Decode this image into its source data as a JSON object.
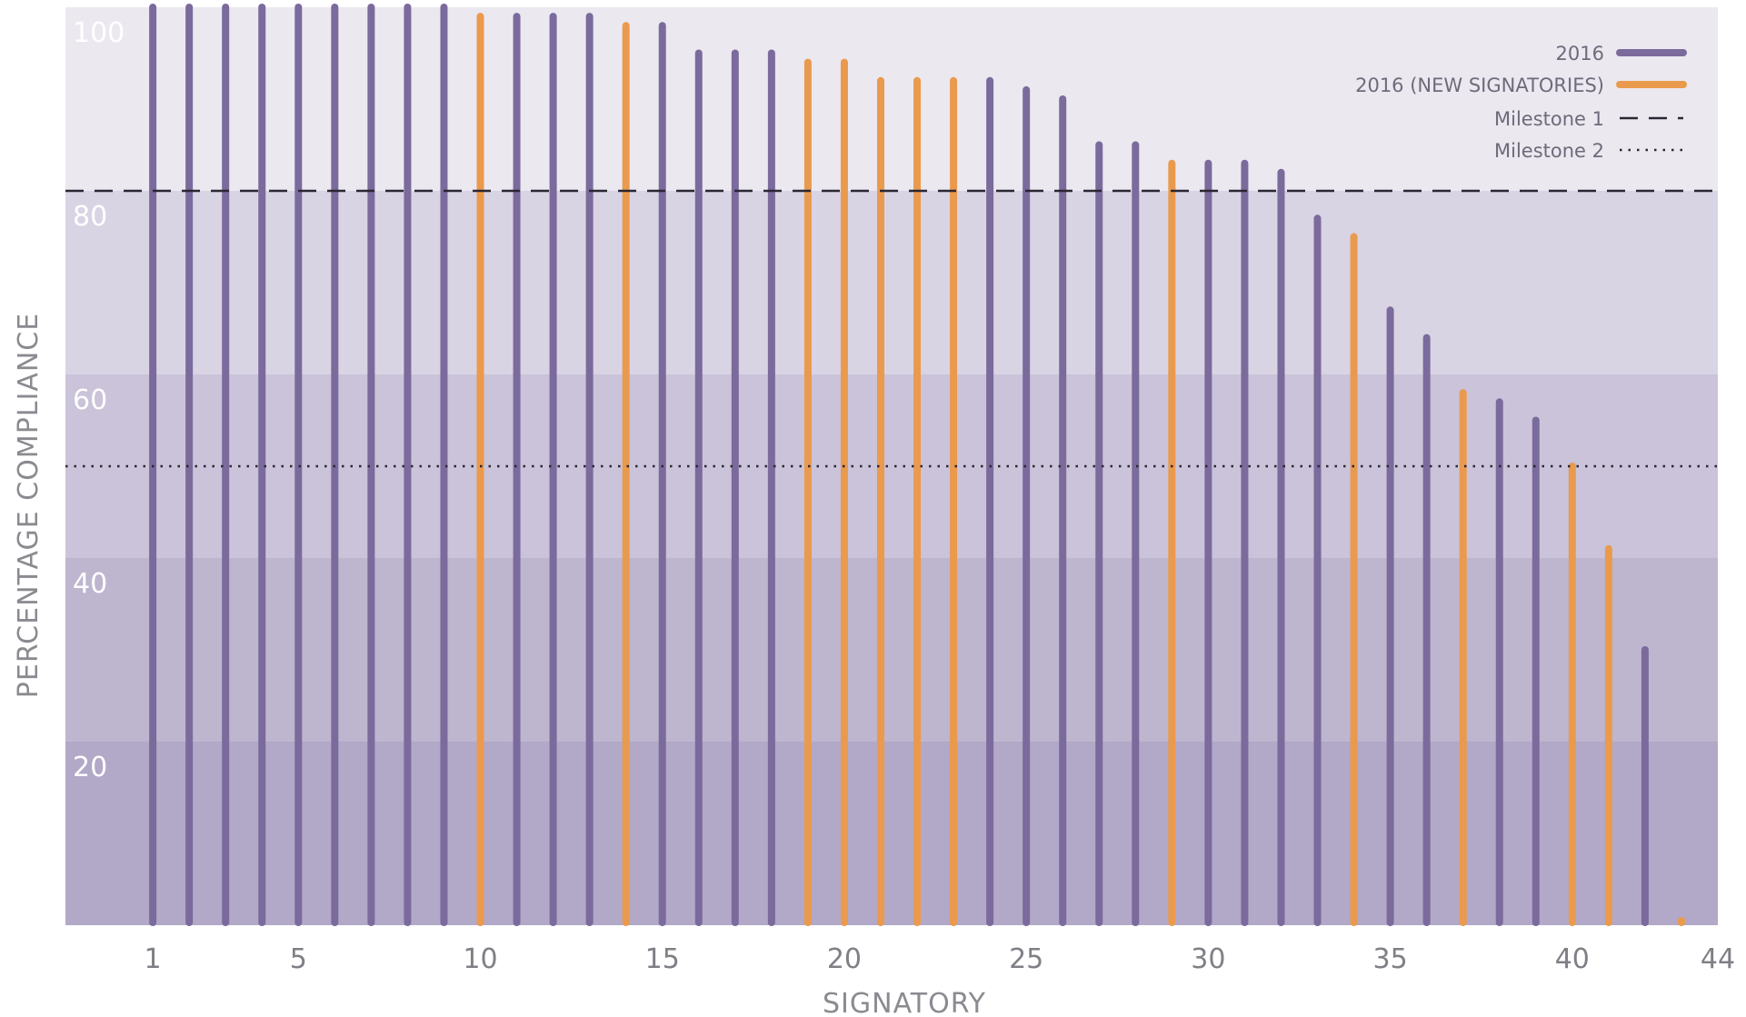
{
  "chart_data": {
    "type": "bar",
    "xlabel": "SIGNATORY",
    "ylabel": "PERCENTAGE COMPLIANCE",
    "xlim": [
      -1.4,
      44
    ],
    "ylim": [
      0,
      100
    ],
    "x_ticks": [
      1,
      5,
      10,
      15,
      20,
      25,
      30,
      35,
      40,
      44
    ],
    "y_ticks": [
      20,
      40,
      60,
      80,
      100
    ],
    "grid": false,
    "legend_position": "top-right",
    "colors": {
      "series_2016": "#7b6a9c",
      "series_new": "#ea9a4d",
      "milestone": "#2a2632",
      "bands": [
        "#b2a8c7",
        "#beb5cf",
        "#cac3d9",
        "#d9d4e4",
        "#ebe8f0"
      ]
    },
    "series": [
      {
        "name": "2016",
        "x": [
          1,
          2,
          3,
          4,
          5,
          6,
          7,
          8,
          9,
          11,
          12,
          13,
          15,
          16,
          17,
          18,
          24,
          25,
          26,
          27,
          28,
          30,
          31,
          32,
          33,
          35,
          36,
          38,
          39,
          42
        ],
        "values": [
          100,
          100,
          100,
          100,
          100,
          100,
          100,
          100,
          100,
          99,
          99,
          99,
          98,
          95,
          95,
          95,
          92,
          91,
          90,
          85,
          85,
          83,
          83,
          82,
          77,
          67,
          64,
          57,
          55,
          30
        ]
      },
      {
        "name": "2016 (NEW SIGNATORIES)",
        "x": [
          10,
          14,
          19,
          20,
          21,
          22,
          23,
          29,
          34,
          37,
          40,
          41,
          43
        ],
        "values": [
          99,
          98,
          94,
          94,
          92,
          92,
          92,
          83,
          75,
          58,
          50,
          41,
          0.5
        ]
      }
    ],
    "reference_lines": [
      {
        "name": "Milestone 1",
        "value": 80,
        "style": "dashed"
      },
      {
        "name": "Milestone 2",
        "value": 50,
        "style": "dotted"
      }
    ]
  }
}
